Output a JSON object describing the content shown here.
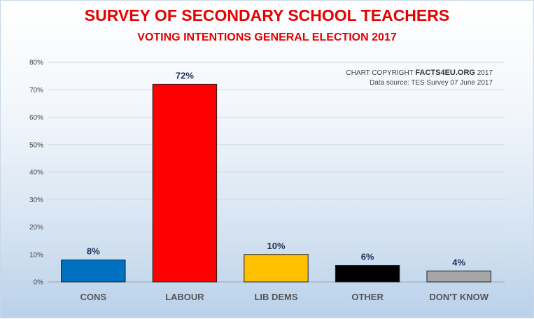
{
  "header": {
    "title": "SURVEY OF SECONDARY SCHOOL TEACHERS",
    "subtitle": "VOTING INTENTIONS GENERAL ELECTION 2017"
  },
  "notes": {
    "copyright_prefix": "CHART COPYRIGHT",
    "copyright_brand": "FACTS4EU.ORG",
    "copyright_year": "2017",
    "source": "Data source: TES Survey 07 June 2017"
  },
  "chart_data": {
    "type": "bar",
    "title": "SURVEY OF SECONDARY SCHOOL TEACHERS",
    "subtitle": "VOTING INTENTIONS GENERAL ELECTION 2017",
    "categories": [
      "CONS",
      "LABOUR",
      "LIB DEMS",
      "OTHER",
      "DON'T KNOW"
    ],
    "values": [
      8,
      72,
      10,
      6,
      4
    ],
    "data_labels": [
      "8%",
      "72%",
      "10%",
      "6%",
      "4%"
    ],
    "colors": [
      "#0070c0",
      "#ff0000",
      "#ffc000",
      "#000000",
      "#a6a6a6"
    ],
    "ylim": [
      0,
      80
    ],
    "yticks": [
      0,
      10,
      20,
      30,
      40,
      50,
      60,
      70,
      80
    ],
    "ytick_labels": [
      "0%",
      "10%",
      "20%",
      "30%",
      "40%",
      "50%",
      "60%",
      "70%",
      "80%"
    ],
    "xlabel": "",
    "ylabel": "",
    "grid": true,
    "legend": "none"
  }
}
